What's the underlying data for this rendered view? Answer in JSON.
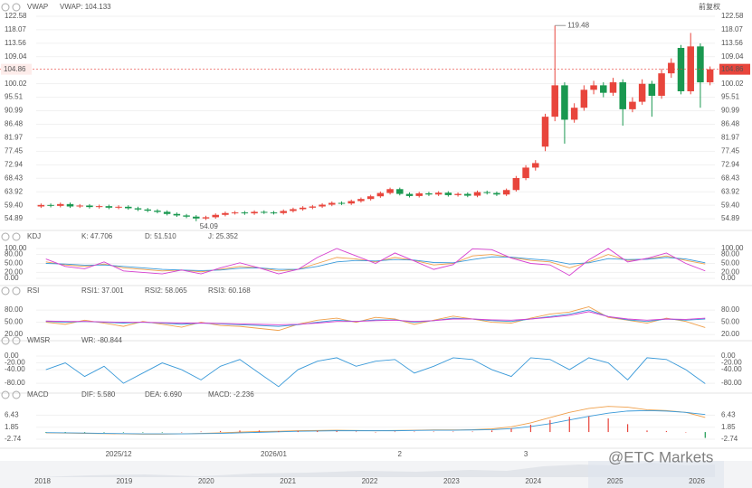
{
  "chart_data": [
    {
      "type": "candlestick",
      "title": "VWAP",
      "indicator_label": "VWAP: 104.133",
      "adjust_label": "前复权",
      "up_color": "#e8453c",
      "down_color": "#1a9850",
      "indicator_color": "#f0a04b",
      "categories": [
        null,
        null,
        null,
        null,
        null,
        null,
        null,
        null,
        "2025/12",
        null,
        null,
        null,
        null,
        null,
        null,
        null,
        null,
        null,
        null,
        null,
        null,
        null,
        null,
        null,
        "2026/01",
        null,
        null,
        null,
        null,
        null,
        null,
        null,
        null,
        null,
        null,
        null,
        null,
        "2",
        null,
        null,
        null,
        null,
        null,
        null,
        null,
        null,
        null,
        null,
        null,
        null,
        "3",
        null,
        null,
        null,
        null,
        null,
        null,
        null,
        null,
        null,
        null,
        null,
        null,
        null,
        null,
        null,
        null,
        null,
        null,
        null
      ],
      "open": [
        59.0,
        59.5,
        59.2,
        59.8,
        59.0,
        59.3,
        58.8,
        59.1,
        58.6,
        58.9,
        58.4,
        58.0,
        57.6,
        57.2,
        56.5,
        56.0,
        55.6,
        55.0,
        55.4,
        56.2,
        56.8,
        57.0,
        56.7,
        57.2,
        57.0,
        56.8,
        57.5,
        58.1,
        58.6,
        59.0,
        59.6,
        60.2,
        60.0,
        60.8,
        61.5,
        62.4,
        63.5,
        64.8,
        63.2,
        62.5,
        63.4,
        63.0,
        63.6,
        62.8,
        63.2,
        62.6,
        63.8,
        63.5,
        63.0,
        64.5,
        68.5,
        72.0,
        79.0,
        89.0,
        99.5,
        88.0,
        92.0,
        98.0,
        99.5,
        97.0,
        100.5,
        91.5,
        94.0,
        100.0,
        96.0,
        103.5,
        112.0,
        97.5,
        112.5,
        100.5
      ],
      "high": [
        60.0,
        60.0,
        60.3,
        60.3,
        59.8,
        59.8,
        59.6,
        59.6,
        59.4,
        59.4,
        58.9,
        58.5,
        58.1,
        57.7,
        57.0,
        56.5,
        56.1,
        55.9,
        56.7,
        57.3,
        57.5,
        57.5,
        57.7,
        57.7,
        57.5,
        58.0,
        58.6,
        59.1,
        59.5,
        60.1,
        60.7,
        60.7,
        61.3,
        62.0,
        62.9,
        64.0,
        65.3,
        65.3,
        63.7,
        63.9,
        63.9,
        64.1,
        64.1,
        63.7,
        63.7,
        64.3,
        64.3,
        64.0,
        65.0,
        69.2,
        72.8,
        74.5,
        90.0,
        119.48,
        100.5,
        93.5,
        99.5,
        101.0,
        100.5,
        102.0,
        101.5,
        95.5,
        101.5,
        101.0,
        105.0,
        108.5,
        113.0,
        117.0,
        113.5,
        105.8
      ],
      "low": [
        58.5,
        58.7,
        58.7,
        58.5,
        58.5,
        58.3,
        58.3,
        58.1,
        58.1,
        57.9,
        57.5,
        57.1,
        56.7,
        56.0,
        55.5,
        55.1,
        54.09,
        54.5,
        54.9,
        55.7,
        56.3,
        56.2,
        56.2,
        56.5,
        56.3,
        56.3,
        57.0,
        57.6,
        58.1,
        58.5,
        59.1,
        59.5,
        59.5,
        60.3,
        61.0,
        61.9,
        63.0,
        62.7,
        62.0,
        62.0,
        62.5,
        62.5,
        62.3,
        62.3,
        62.1,
        62.1,
        63.0,
        62.5,
        62.5,
        64.0,
        67.8,
        71.0,
        77.5,
        87.5,
        80.0,
        87.0,
        91.0,
        96.5,
        95.5,
        96.0,
        86.0,
        90.5,
        93.0,
        89.0,
        95.0,
        102.0,
        96.5,
        96.5,
        92.0,
        99.5
      ],
      "close": [
        59.5,
        59.2,
        59.8,
        59.0,
        59.3,
        58.8,
        59.1,
        58.6,
        58.9,
        58.4,
        58.0,
        57.6,
        57.2,
        56.5,
        56.0,
        55.6,
        55.0,
        55.4,
        56.2,
        56.8,
        57.0,
        56.7,
        57.2,
        57.0,
        56.8,
        57.5,
        58.1,
        58.6,
        59.0,
        59.6,
        60.2,
        60.0,
        60.8,
        61.5,
        62.4,
        63.5,
        64.8,
        63.2,
        62.5,
        63.4,
        63.0,
        63.6,
        62.8,
        63.2,
        62.6,
        63.8,
        63.5,
        63.0,
        64.5,
        68.5,
        72.0,
        73.5,
        89.0,
        99.5,
        88.0,
        92.0,
        98.0,
        99.5,
        97.0,
        100.5,
        91.5,
        94.0,
        100.0,
        96.0,
        103.5,
        107.0,
        97.5,
        112.5,
        100.5,
        104.86
      ],
      "ylim": [
        52.5,
        126.5
      ],
      "yticks": [
        122.58,
        118.07,
        113.56,
        109.04,
        100.02,
        95.51,
        90.99,
        86.48,
        81.97,
        77.45,
        72.94,
        68.43,
        63.92,
        {
          "value": 59.4,
          "label": "59.40"
        },
        54.89
      ],
      "grid": true
    },
    {
      "type": "line",
      "title": "KDJ",
      "ylim": [
        -12,
        115
      ],
      "yticks": [
        {
          "value": 100,
          "label": "100.00"
        },
        {
          "value": 80,
          "label": "80.00"
        },
        {
          "value": 50,
          "label": "50.00"
        },
        {
          "value": 20,
          "label": "20.00"
        },
        {
          "value": 0,
          "label": "0.00"
        }
      ],
      "series": [
        {
          "name": "K: 47.706",
          "color": "#f0a04b",
          "values": [
            55,
            45,
            40,
            48,
            35,
            30,
            25,
            28,
            22,
            30,
            40,
            35,
            25,
            30,
            50,
            70,
            65,
            55,
            70,
            60,
            45,
            50,
            75,
            80,
            70,
            60,
            55,
            35,
            55,
            80,
            60,
            65,
            75,
            60,
            48
          ]
        },
        {
          "name": "D: 51.510",
          "color": "#3a9ad9",
          "values": [
            50,
            48,
            44,
            45,
            40,
            35,
            30,
            28,
            26,
            28,
            34,
            35,
            30,
            30,
            40,
            55,
            60,
            58,
            63,
            61,
            53,
            52,
            63,
            72,
            71,
            65,
            60,
            48,
            52,
            66,
            63,
            64,
            70,
            65,
            52
          ]
        },
        {
          "name": "J: 25.352",
          "color": "#d63fd0",
          "values": [
            65,
            40,
            32,
            55,
            25,
            20,
            15,
            28,
            15,
            35,
            52,
            35,
            15,
            30,
            70,
            100,
            75,
            50,
            85,
            58,
            30,
            46,
            99,
            96,
            68,
            50,
            45,
            10,
            62,
            100,
            55,
            67,
            85,
            50,
            25
          ]
        }
      ]
    },
    {
      "type": "line",
      "title": "RSI",
      "ylim": [
        7,
        109
      ],
      "yticks": [
        {
          "value": 80,
          "label": "80.00"
        },
        {
          "value": 50,
          "label": "50.00"
        },
        {
          "value": 20,
          "label": "20.00"
        }
      ],
      "series": [
        {
          "name": "RSI1: 37.001",
          "color": "#f0a04b",
          "values": [
            50,
            45,
            55,
            48,
            40,
            52,
            45,
            38,
            50,
            42,
            40,
            35,
            30,
            45,
            55,
            60,
            50,
            62,
            58,
            45,
            55,
            65,
            58,
            50,
            48,
            60,
            70,
            75,
            88,
            62,
            55,
            48,
            60,
            52,
            37
          ]
        },
        {
          "name": "RSI2: 58.065",
          "color": "#3a9ad9",
          "values": [
            52,
            50,
            52,
            50,
            48,
            50,
            48,
            45,
            48,
            46,
            44,
            42,
            40,
            44,
            50,
            55,
            52,
            56,
            56,
            50,
            54,
            60,
            58,
            54,
            52,
            58,
            64,
            70,
            80,
            64,
            56,
            52,
            58,
            55,
            58
          ]
        },
        {
          "name": "RSI3: 60.168",
          "color": "#d63fd0",
          "values": [
            53,
            52,
            52,
            51,
            50,
            50,
            49,
            48,
            48,
            47,
            46,
            45,
            44,
            45,
            48,
            52,
            52,
            54,
            55,
            52,
            54,
            58,
            58,
            56,
            55,
            58,
            62,
            67,
            76,
            64,
            58,
            55,
            58,
            57,
            60
          ]
        }
      ]
    },
    {
      "type": "line",
      "title": "WMSR",
      "ylim": [
        -101,
        24
      ],
      "yticks": [
        {
          "value": 0,
          "label": "0.00"
        },
        {
          "value": -20,
          "label": "-20.00"
        },
        {
          "value": -40,
          "label": "-40.00"
        },
        {
          "value": -80,
          "label": "-80.00"
        }
      ],
      "series": [
        {
          "name": "WR: -80.844",
          "color": "#3a9ad9",
          "values": [
            -40,
            -20,
            -60,
            -30,
            -80,
            -50,
            -20,
            -40,
            -70,
            -30,
            -10,
            -50,
            -90,
            -40,
            -15,
            -5,
            -30,
            -15,
            -10,
            -50,
            -30,
            -5,
            -10,
            -40,
            -60,
            -5,
            -10,
            -40,
            -5,
            -20,
            -70,
            -5,
            -10,
            -40,
            -81
          ]
        }
      ]
    },
    {
      "type": "line",
      "title": "MACD",
      "ylim": [
        -4.8,
        11.4
      ],
      "yticks": [
        6.43,
        1.85,
        -2.74
      ],
      "series": [
        {
          "name": "DIF: 5.580",
          "color": "#f0a04b",
          "values": [
            -0.3,
            -0.4,
            -0.5,
            -0.6,
            -0.7,
            -0.8,
            -0.8,
            -0.7,
            -0.5,
            -0.3,
            0,
            0.2,
            0.3,
            0.5,
            0.6,
            0.7,
            0.6,
            0.5,
            0.6,
            0.7,
            0.8,
            0.8,
            0.9,
            1.2,
            2,
            3.5,
            5.5,
            7.5,
            9.0,
            9.8,
            9.5,
            8.5,
            8.2,
            7.5,
            5.58
          ]
        },
        {
          "name": "DEA: 6.690",
          "color": "#3a9ad9",
          "values": [
            -0.2,
            -0.3,
            -0.4,
            -0.5,
            -0.6,
            -0.7,
            -0.7,
            -0.7,
            -0.6,
            -0.5,
            -0.3,
            -0.1,
            0.1,
            0.3,
            0.4,
            0.5,
            0.5,
            0.5,
            0.5,
            0.6,
            0.7,
            0.7,
            0.8,
            0.9,
            1.3,
            2.1,
            3.2,
            4.6,
            6.0,
            7.2,
            8.0,
            8.2,
            8.0,
            7.5,
            6.69
          ]
        },
        {
          "name": "MACD: -2.236",
          "color": "#d63fd0",
          "kind": "bar",
          "up_color": "#e8453c",
          "down_color": "#1a9850",
          "values": [
            -0.2,
            -0.2,
            -0.2,
            -0.2,
            -0.2,
            -0.2,
            -0.2,
            0,
            0.2,
            0.4,
            0.6,
            0.6,
            0.4,
            0.4,
            0.4,
            0.4,
            0.2,
            0,
            0.2,
            0.2,
            0.2,
            0.2,
            0.2,
            0.6,
            1.4,
            2.8,
            4.6,
            5.8,
            6.0,
            5.2,
            3.0,
            0.6,
            0.4,
            0,
            -2.236
          ]
        }
      ]
    },
    {
      "type": "timeline",
      "categories": [
        "2018",
        "2019",
        "2020",
        "2021",
        "2022",
        "2023",
        "2024",
        "2025",
        "2026"
      ],
      "watermark": "@ETC Markets"
    }
  ]
}
